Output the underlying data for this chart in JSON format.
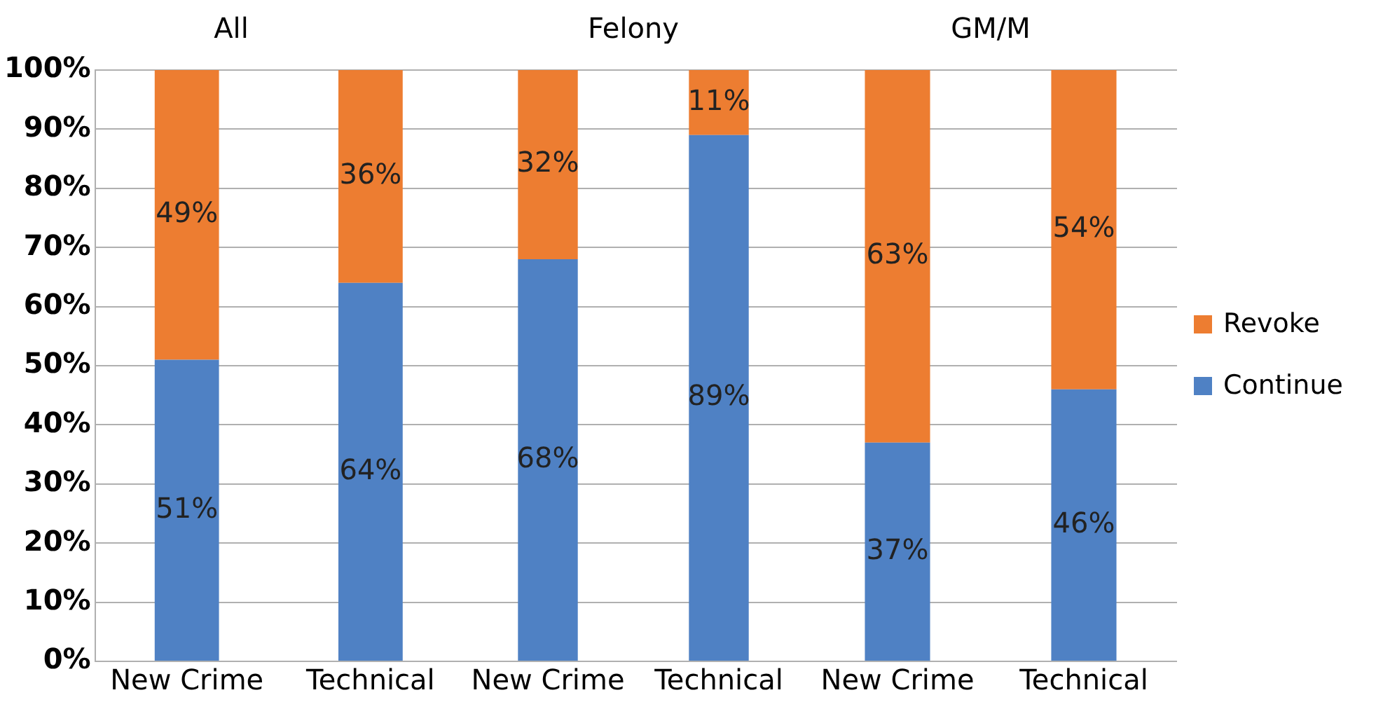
{
  "chart_data": [
    {
      "type": "bar",
      "title": "All",
      "categories": [
        "New Crime",
        "Technical"
      ],
      "stacked": true,
      "data_labels": true,
      "grid": "y",
      "ylim": [
        0,
        100
      ],
      "yticks": [
        {
          "value": 0,
          "label": "0%"
        },
        {
          "value": 10,
          "label": "10%"
        },
        {
          "value": 20,
          "label": "20%"
        },
        {
          "value": 30,
          "label": "30%"
        },
        {
          "value": 40,
          "label": "40%"
        },
        {
          "value": 50,
          "label": "50%"
        },
        {
          "value": 60,
          "label": "60%"
        },
        {
          "value": 70,
          "label": "70%"
        },
        {
          "value": 80,
          "label": "80%"
        },
        {
          "value": 90,
          "label": "90%"
        },
        {
          "value": 100,
          "label": "100%"
        }
      ],
      "series": [
        {
          "color": "#4f81c4",
          "values": [
            51,
            64
          ],
          "value_labels": [
            "51%",
            "64%"
          ]
        },
        {
          "color": "#ed7d31",
          "values": [
            49,
            36
          ],
          "value_labels": [
            "49%",
            "36%"
          ]
        }
      ]
    },
    {
      "type": "bar",
      "title": "Felony",
      "categories": [
        "New Crime",
        "Technical"
      ],
      "stacked": true,
      "data_labels": true,
      "grid": "y",
      "tick_labels": "x",
      "ylim": [
        0,
        100
      ],
      "yticks": [
        {
          "value": 0,
          "label": null
        },
        {
          "value": 10,
          "label": null
        },
        {
          "value": 20,
          "label": null
        },
        {
          "value": 30,
          "label": null
        },
        {
          "value": 40,
          "label": null
        },
        {
          "value": 50,
          "label": null
        },
        {
          "value": 60,
          "label": null
        },
        {
          "value": 70,
          "label": null
        },
        {
          "value": 80,
          "label": null
        },
        {
          "value": 90,
          "label": null
        },
        {
          "value": 100,
          "label": null
        }
      ],
      "series": [
        {
          "color": "#4f81c4",
          "values": [
            68,
            89
          ],
          "value_labels": [
            "68%",
            "89%"
          ]
        },
        {
          "color": "#ed7d31",
          "values": [
            32,
            11
          ],
          "value_labels": [
            "32%",
            "11%"
          ]
        }
      ]
    },
    {
      "type": "bar",
      "title": "GM/M",
      "categories": [
        "New Crime",
        "Technical"
      ],
      "stacked": true,
      "data_labels": true,
      "grid": "y",
      "tick_labels": "x",
      "legend": "right",
      "ylim": [
        0,
        100
      ],
      "yticks": [
        {
          "value": 0,
          "label": null
        },
        {
          "value": 10,
          "label": null
        },
        {
          "value": 20,
          "label": null
        },
        {
          "value": 30,
          "label": null
        },
        {
          "value": 40,
          "label": null
        },
        {
          "value": 50,
          "label": null
        },
        {
          "value": 60,
          "label": null
        },
        {
          "value": 70,
          "label": null
        },
        {
          "value": 80,
          "label": null
        },
        {
          "value": 90,
          "label": null
        },
        {
          "value": 100,
          "label": null
        }
      ],
      "series": [
        {
          "name": "Continue",
          "color": "#4f81c4",
          "values": [
            37,
            46
          ],
          "value_labels": [
            "37%",
            "46%"
          ]
        },
        {
          "name": "Revoke",
          "color": "#ed7d31",
          "values": [
            63,
            54
          ],
          "value_labels": [
            "63%",
            "54%"
          ]
        }
      ]
    }
  ]
}
